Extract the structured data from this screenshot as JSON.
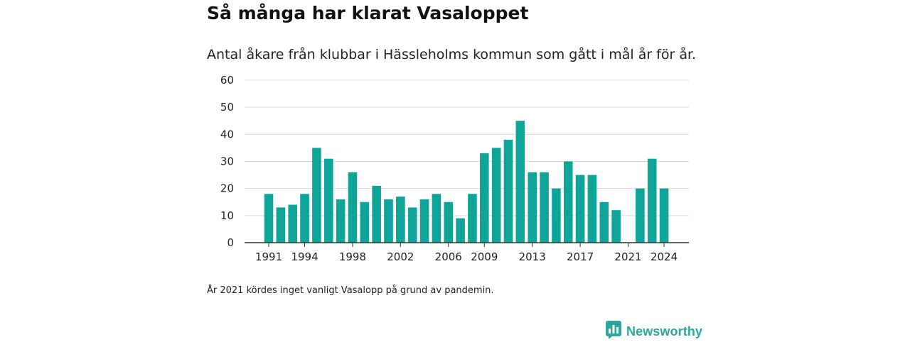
{
  "title": "Så många har klarat Vasaloppet",
  "subtitle": "Antal åkare från klubbar i Hässleholms kommun som gått i mål år för år.",
  "footnote": "År 2021 kördes inget vanligt Vasalopp på grund av pandemin.",
  "brand": {
    "name": "Newsworthy",
    "icon": "newsworthy-chart-bubble-icon",
    "color": "#2ca79a"
  },
  "colors": {
    "bar": "#0ea598",
    "grid": "#d9d9d9",
    "axis": "#333333"
  },
  "chart_data": {
    "type": "bar",
    "x": [
      1991,
      1992,
      1993,
      1994,
      1995,
      1996,
      1997,
      1998,
      1999,
      2000,
      2001,
      2002,
      2003,
      2004,
      2005,
      2006,
      2007,
      2008,
      2009,
      2010,
      2011,
      2012,
      2013,
      2014,
      2015,
      2016,
      2017,
      2018,
      2019,
      2020,
      2021,
      2022,
      2023,
      2024
    ],
    "values": [
      18,
      13,
      14,
      18,
      35,
      31,
      16,
      26,
      15,
      21,
      16,
      17,
      13,
      16,
      18,
      15,
      9,
      18,
      33,
      35,
      38,
      45,
      26,
      26,
      20,
      30,
      25,
      25,
      15,
      12,
      null,
      20,
      31,
      20
    ],
    "xticks": [
      "1991",
      "1994",
      "1998",
      "2002",
      "2006",
      "2009",
      "2013",
      "2017",
      "2021",
      "2024"
    ],
    "yticks": [
      "0",
      "10",
      "20",
      "30",
      "40",
      "50",
      "60"
    ],
    "ylim": [
      0,
      60
    ],
    "xlabel": "",
    "ylabel": "",
    "grid": true,
    "legend": "none"
  }
}
